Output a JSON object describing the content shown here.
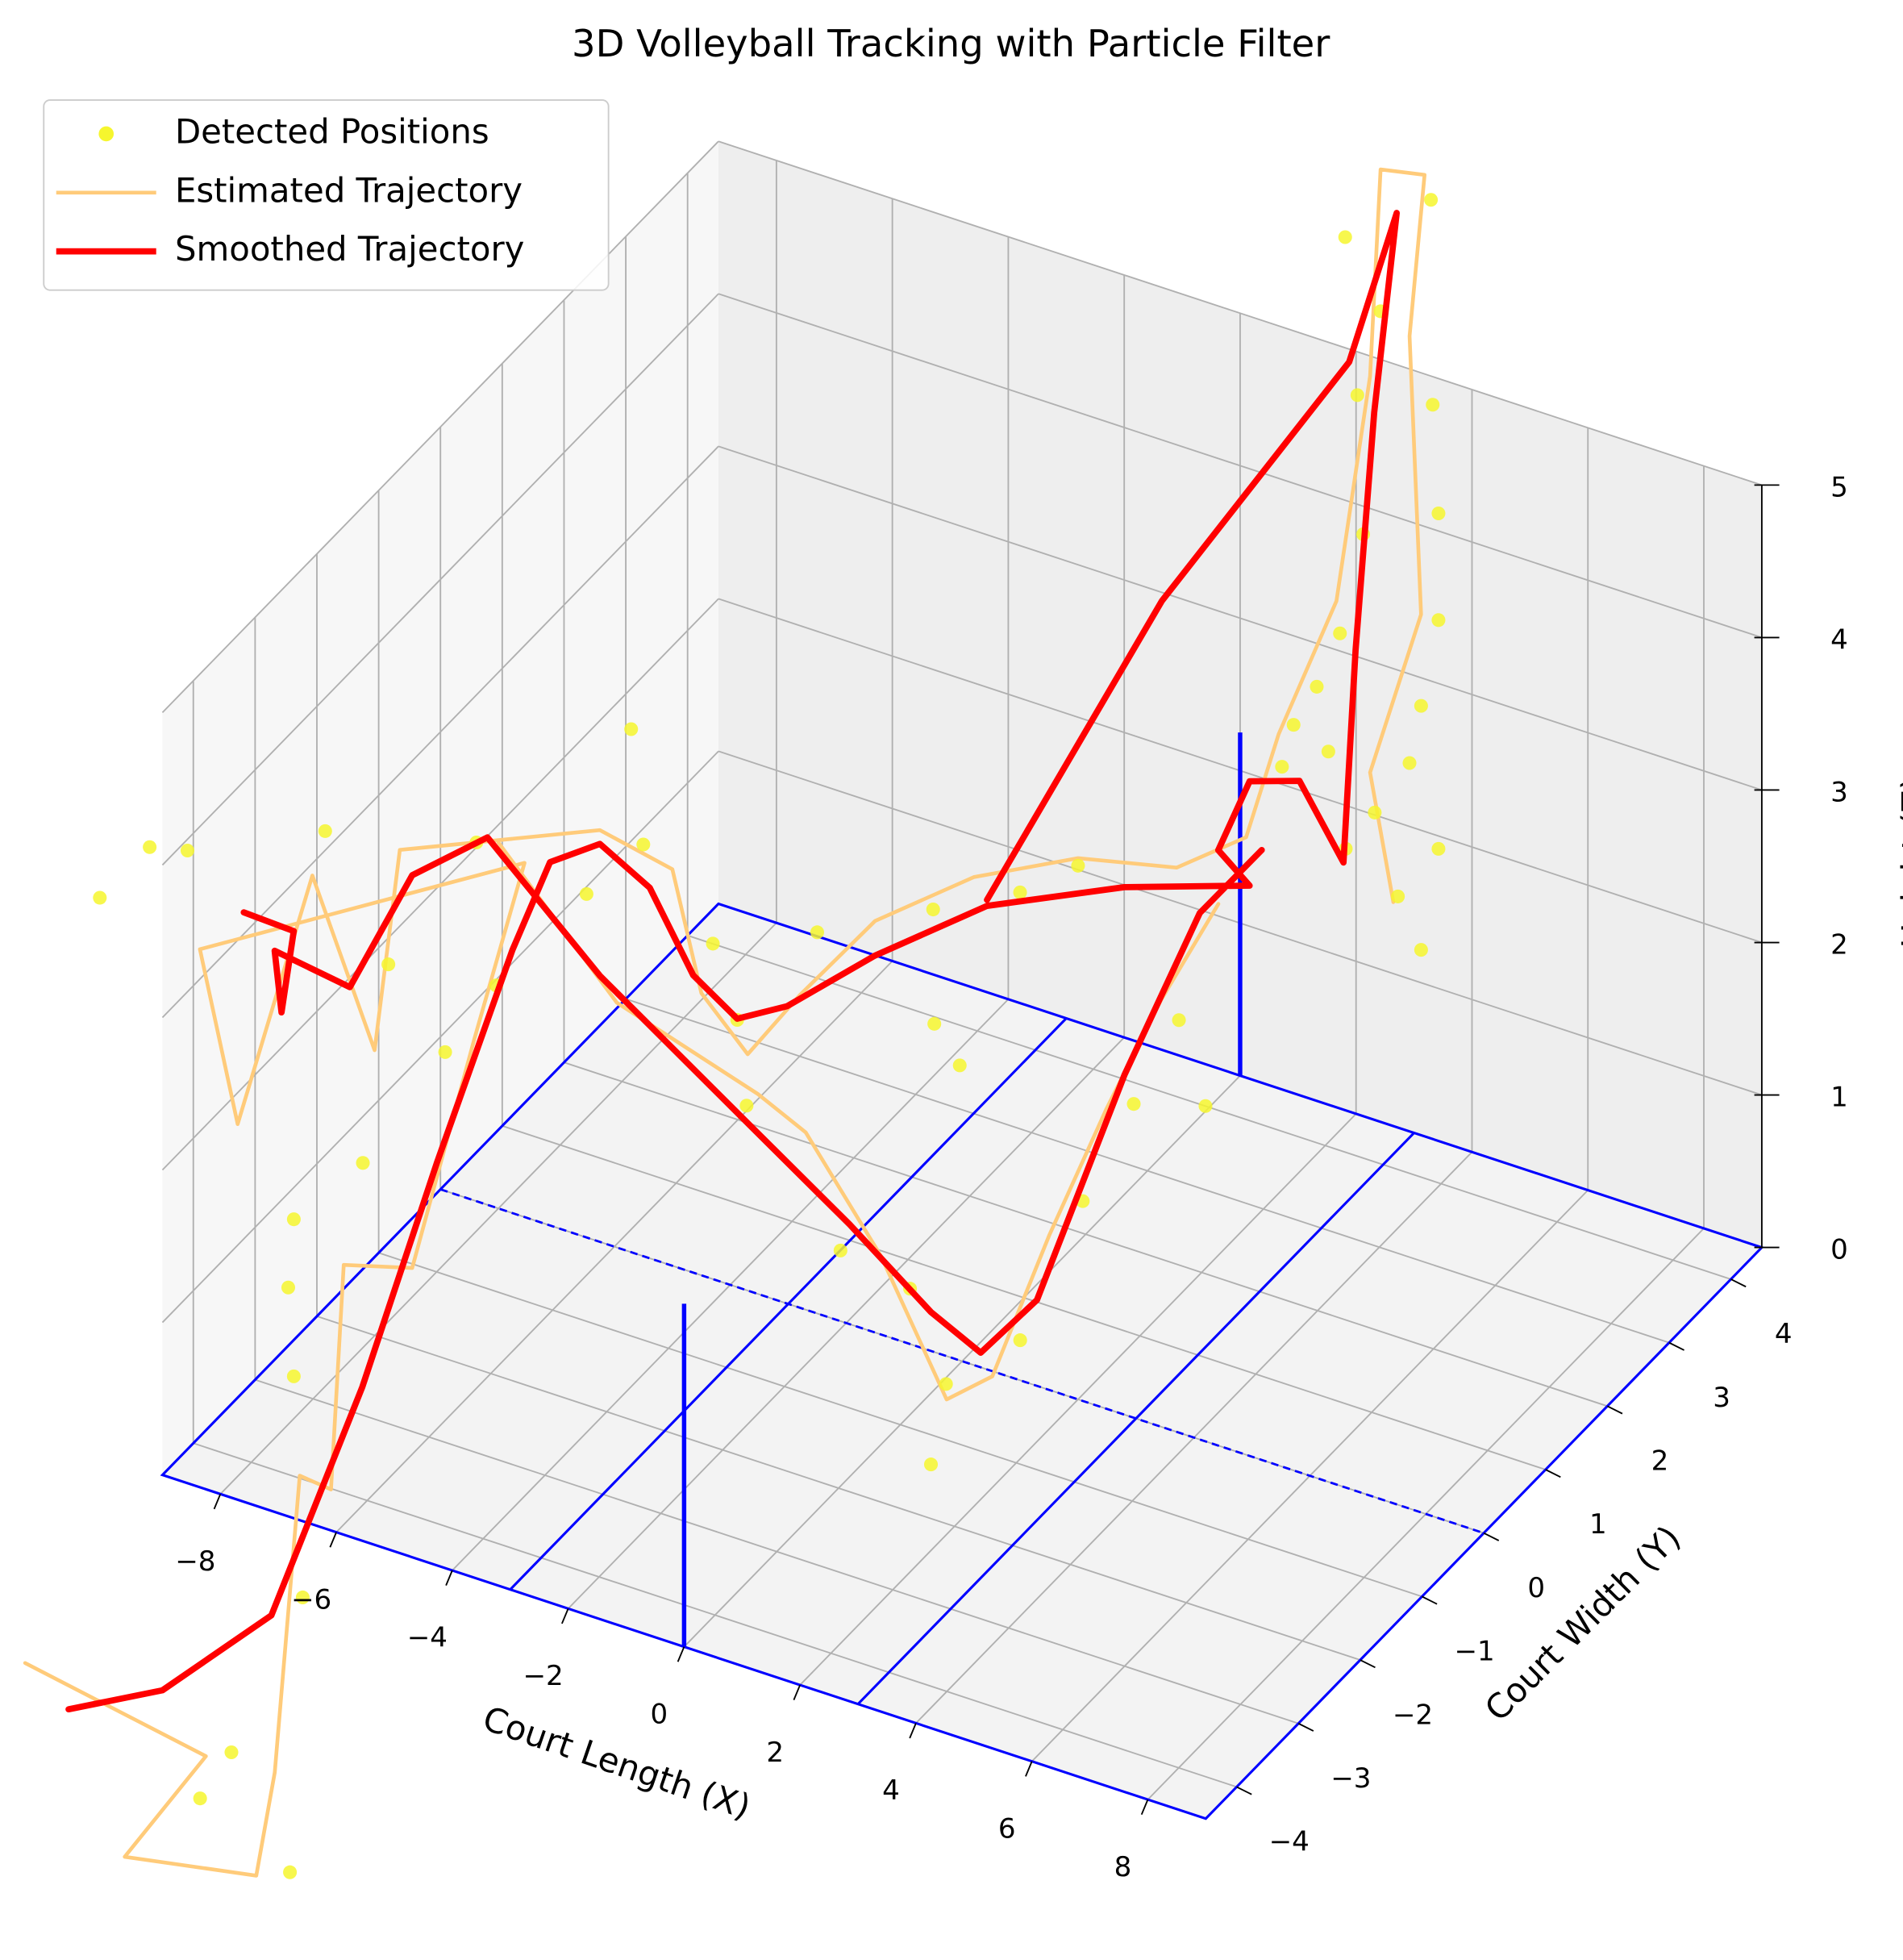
{
  "chart_data": {
    "type": "trajectory3d",
    "title": "3D Volleyball Tracking with Particle Filter",
    "xlabel": "Court Length (X)",
    "ylabel": "Court Width (Y)",
    "zlabel": "Height (Z)",
    "xlim": [
      -9,
      9
    ],
    "ylim": [
      -4.5,
      4.5
    ],
    "zlim": [
      0,
      5
    ],
    "xticks": [
      {
        "value": -8,
        "label": "−8"
      },
      {
        "value": -6,
        "label": "−6"
      },
      {
        "value": -4,
        "label": "−4"
      },
      {
        "value": -2,
        "label": "−2"
      },
      0,
      2,
      4,
      6,
      8
    ],
    "yticks": [
      {
        "value": -4,
        "label": "−4"
      },
      {
        "value": -3,
        "label": "−3"
      },
      {
        "value": -2,
        "label": "−2"
      },
      {
        "value": -1,
        "label": "−1"
      },
      0,
      1,
      2,
      3,
      4
    ],
    "zticks": [
      0,
      1,
      2,
      3,
      4,
      5
    ],
    "grid": true,
    "legend": "upper left",
    "series": [
      {
        "name": "Detected Positions",
        "mode": "markers",
        "color": "#f6f62e",
        "x": [
          -5.71,
          -6.58,
          -6.8,
          -7.81,
          -8.35,
          2.34,
          2.28,
          -1.0,
          -10.08,
          -9.22,
          -8.76,
          -8.1,
          -8.46,
          -8.46,
          -8.46,
          -8.1,
          6.17,
          4.69,
          5.3,
          6.2,
          4.9,
          6.3,
          5.0,
          6.3,
          4.6,
          6.0,
          4.2,
          5.8,
          5.2,
          3.8,
          6.3,
          5.6,
          3.6,
          4.7,
          6.0,
          4.4,
          2.0,
          1.0,
          -0.5,
          0.0,
          -2.5,
          -3.4,
          -4.3,
          -5.5,
          -6.0,
          -1.8,
          0.3,
          1.5,
          2.6,
          3.4,
          4.0,
          4.4,
          4.7,
          -7.0,
          -7.5,
          -6.6,
          -7.9
        ],
        "y": [
          0,
          -4.5,
          -4.5,
          -4.5,
          -4.5,
          -2.7,
          1.8,
          0.9,
          -4.5,
          -4.5,
          -4.32,
          -2.71,
          -2.88,
          -2.97,
          -2.88,
          -2.1,
          1.8,
          1.8,
          1.8,
          1.8,
          1.8,
          1.8,
          1.8,
          1.8,
          1.8,
          1.8,
          1.8,
          1.8,
          1.8,
          1.8,
          1.8,
          1.8,
          1.8,
          1.8,
          1.8,
          1.8,
          0,
          0,
          0,
          -0.45,
          0,
          -0.45,
          0,
          0,
          -0.45,
          -1.8,
          -2.25,
          -2.25,
          -2.7,
          -2.25,
          -1.8,
          -1.35,
          -0.9,
          -1.8,
          -2.25,
          -1.35,
          -0.45
        ],
        "z": [
          3.43,
          -0.5,
          -2.33,
          -1.67,
          -2.04,
          0.74,
          1.21,
          1.44,
          3.65,
          4.09,
          4.05,
          3.59,
          1.07,
          0.66,
          0.04,
          1.16,
          7.64,
          7.21,
          6.8,
          6.3,
          6.2,
          5.6,
          5.3,
          4.9,
          4.6,
          4.3,
          4.2,
          3.9,
          3.5,
          3.9,
          3.4,
          3.0,
          3.6,
          3.2,
          2.7,
          3.8,
          3.5,
          3.2,
          2.9,
          2.4,
          2.5,
          2.0,
          2.2,
          2.7,
          2.5,
          2.2,
          1.7,
          1.6,
          1.3,
          1.5,
          2.3,
          2.8,
          3.2,
          1.9,
          2.6,
          2.2,
          2.6
        ]
      },
      {
        "name": "Estimated Trajectory",
        "mode": "lines",
        "color": "#ffcb7a",
        "width": 3,
        "x": [
          -11.37,
          -8.25,
          -10.61,
          -8.34,
          -8.5,
          -8.07,
          -8.01,
          -7.79,
          -7.09,
          -6.97,
          -7.07,
          -8.64,
          -8.64,
          -8.46,
          -8.1,
          -7.74,
          -6.25,
          -5.0,
          -4.5,
          -3.7,
          -2.8,
          -1.5,
          0.2,
          2.0,
          3.7,
          4.9,
          4.5,
          5.5,
          5.6,
          5.3,
          6.06,
          5.8,
          6.0,
          5.6,
          6.0,
          null,
          -8.0,
          -5.0,
          -1.6,
          -0.3,
          1.0,
          2.61,
          3.4,
          3.9,
          4.2,
          4.5,
          4.9
        ],
        "y": [
          -4.5,
          -4.5,
          -3.6,
          -3.6,
          -3.15,
          -3.15,
          -2.7,
          -2.7,
          -2.25,
          -1.35,
          -0.45,
          -4.23,
          -3.62,
          -2.58,
          -1.91,
          -1.84,
          0,
          0,
          0,
          0,
          0,
          0,
          0,
          0,
          0,
          0,
          0.9,
          0.9,
          1.35,
          1.8,
          1.8,
          1.8,
          1.8,
          1.35,
          1.35,
          null,
          0,
          -0.9,
          -1.8,
          -2.25,
          -2.25,
          -2.7,
          -2.7,
          -2.25,
          -1.6,
          -1.0,
          -0.45
        ],
        "z": [
          -1.53,
          -1.75,
          -3.08,
          -2.92,
          -2.45,
          -0.45,
          -0.72,
          0.78,
          0.66,
          1.81,
          2.57,
          3.38,
          1.98,
          3.2,
          1.82,
          3.15,
          2.7,
          2.6,
          1.85,
          1.55,
          2.05,
          2.7,
          3.2,
          3.55,
          3.7,
          4.05,
          4.3,
          5.3,
          6.6,
          7.73,
          7.79,
          6.7,
          4.9,
          4.0,
          3.2,
          null,
          2.4,
          2.1,
          2.3,
          2.4,
          1.75,
          1.2,
          1.45,
          2.25,
          2.85,
          3.35,
          3.8
        ]
      },
      {
        "name": "Smoothed Trajectory",
        "mode": "lines",
        "color": "#ff0000",
        "width": 5,
        "x": [
          -10.62,
          -9.48,
          -8.08,
          -7.47,
          -7.14,
          -6.8,
          -6.63,
          -6.25,
          -5.39,
          -4.64,
          -3.88,
          -3.02,
          -1.51,
          0.43,
          2.8,
          4.96,
          3.46,
          4.0,
          4.86,
          5.62,
          5.83,
          5.67,
          5.58,
          4.76,
          1.53,
          -1.49,
          null,
          -8.46,
          -8.46,
          -8.46,
          -8.46,
          -8.1,
          -7.74,
          -8.19,
          -5.29,
          -1.75,
          0.46,
          2.34,
          3.2,
          3.69,
          4.24,
          4.58,
          5.17
        ],
        "y": [
          -4.5,
          -4.05,
          -3.6,
          -2.7,
          -1.8,
          -0.9,
          -0.45,
          0,
          0,
          0,
          0,
          0,
          0,
          0,
          0,
          0,
          0.9,
          0.9,
          0.9,
          0.9,
          0.9,
          1.35,
          1.8,
          1.8,
          1.8,
          1.8,
          null,
          -3.69,
          -2.88,
          -3.08,
          -3.19,
          -2.31,
          -1.64,
          0,
          -0.9,
          -1.8,
          -2.25,
          -2.7,
          -2.7,
          -2.25,
          -1.35,
          -0.45,
          0
        ],
        "z": [
          -1.74,
          -1.66,
          -1.18,
          0.02,
          1.16,
          2.22,
          2.63,
          2.61,
          2.43,
          1.95,
          1.76,
          1.95,
          2.47,
          3.04,
          3.46,
          3.74,
          3.41,
          3.93,
          4.04,
          3.6,
          5.02,
          6.37,
          7.48,
          6.4,
          4.43,
          2.09,
          null,
          3.42,
          2.96,
          2.51,
          2.96,
          2.4,
          2.9,
          2.41,
          2.24,
          2.08,
          1.89,
          1.74,
          1.58,
          1.8,
          2.97,
          3.7,
          4.0
        ]
      }
    ]
  }
}
